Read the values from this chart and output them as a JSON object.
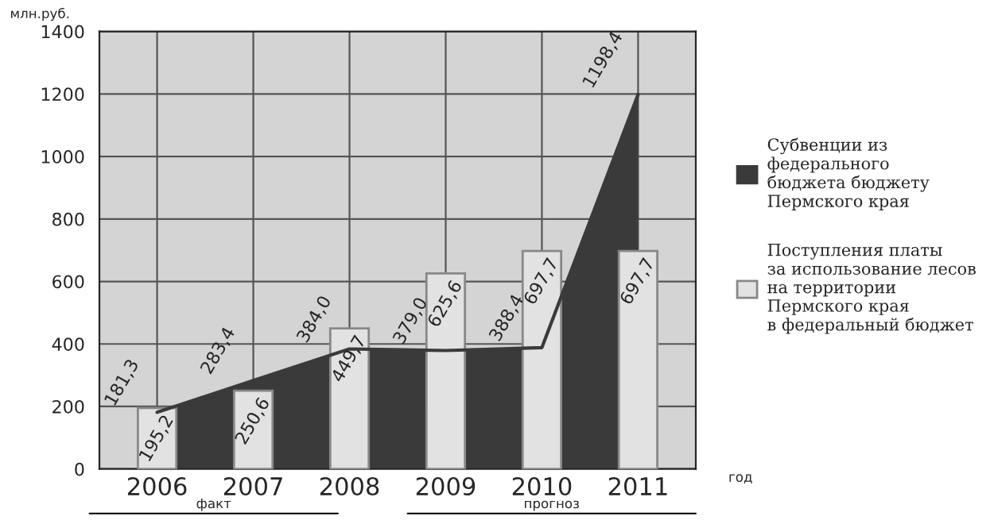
{
  "chart_data": {
    "type": "bar",
    "ylabel": "млн.руб.",
    "xlabel": "год",
    "categories": [
      "2006",
      "2007",
      "2008",
      "2009",
      "2010",
      "2011"
    ],
    "series": [
      {
        "name": "Субвенции из\nфедерального\nбюджета бюджету\nПермского края",
        "type": "area",
        "color": "#3a3a3a",
        "values": [
          181.3,
          283.4,
          384.0,
          379.0,
          388.4,
          1198.4
        ],
        "value_labels": [
          "181,3",
          "283,4",
          "384,0",
          "379,0",
          "388,4",
          "1198,4"
        ]
      },
      {
        "name": "Поступления платы\nза использование лесов\nна территории\nПермского края\nв федеральный бюджет",
        "color": "#e2e2e2",
        "values": [
          195.2,
          250.6,
          449.7,
          625.6,
          697.7,
          697.7
        ],
        "value_labels": [
          "195,2",
          "250,6",
          "449,7",
          "625,6",
          "697,7",
          "697,7"
        ]
      }
    ],
    "ylim": [
      0,
      1400
    ],
    "yticks": [
      0,
      200,
      400,
      600,
      800,
      1000,
      1200,
      1400
    ],
    "grid": true,
    "legend": "right",
    "annotations": [
      "факт",
      "прогноз"
    ]
  }
}
